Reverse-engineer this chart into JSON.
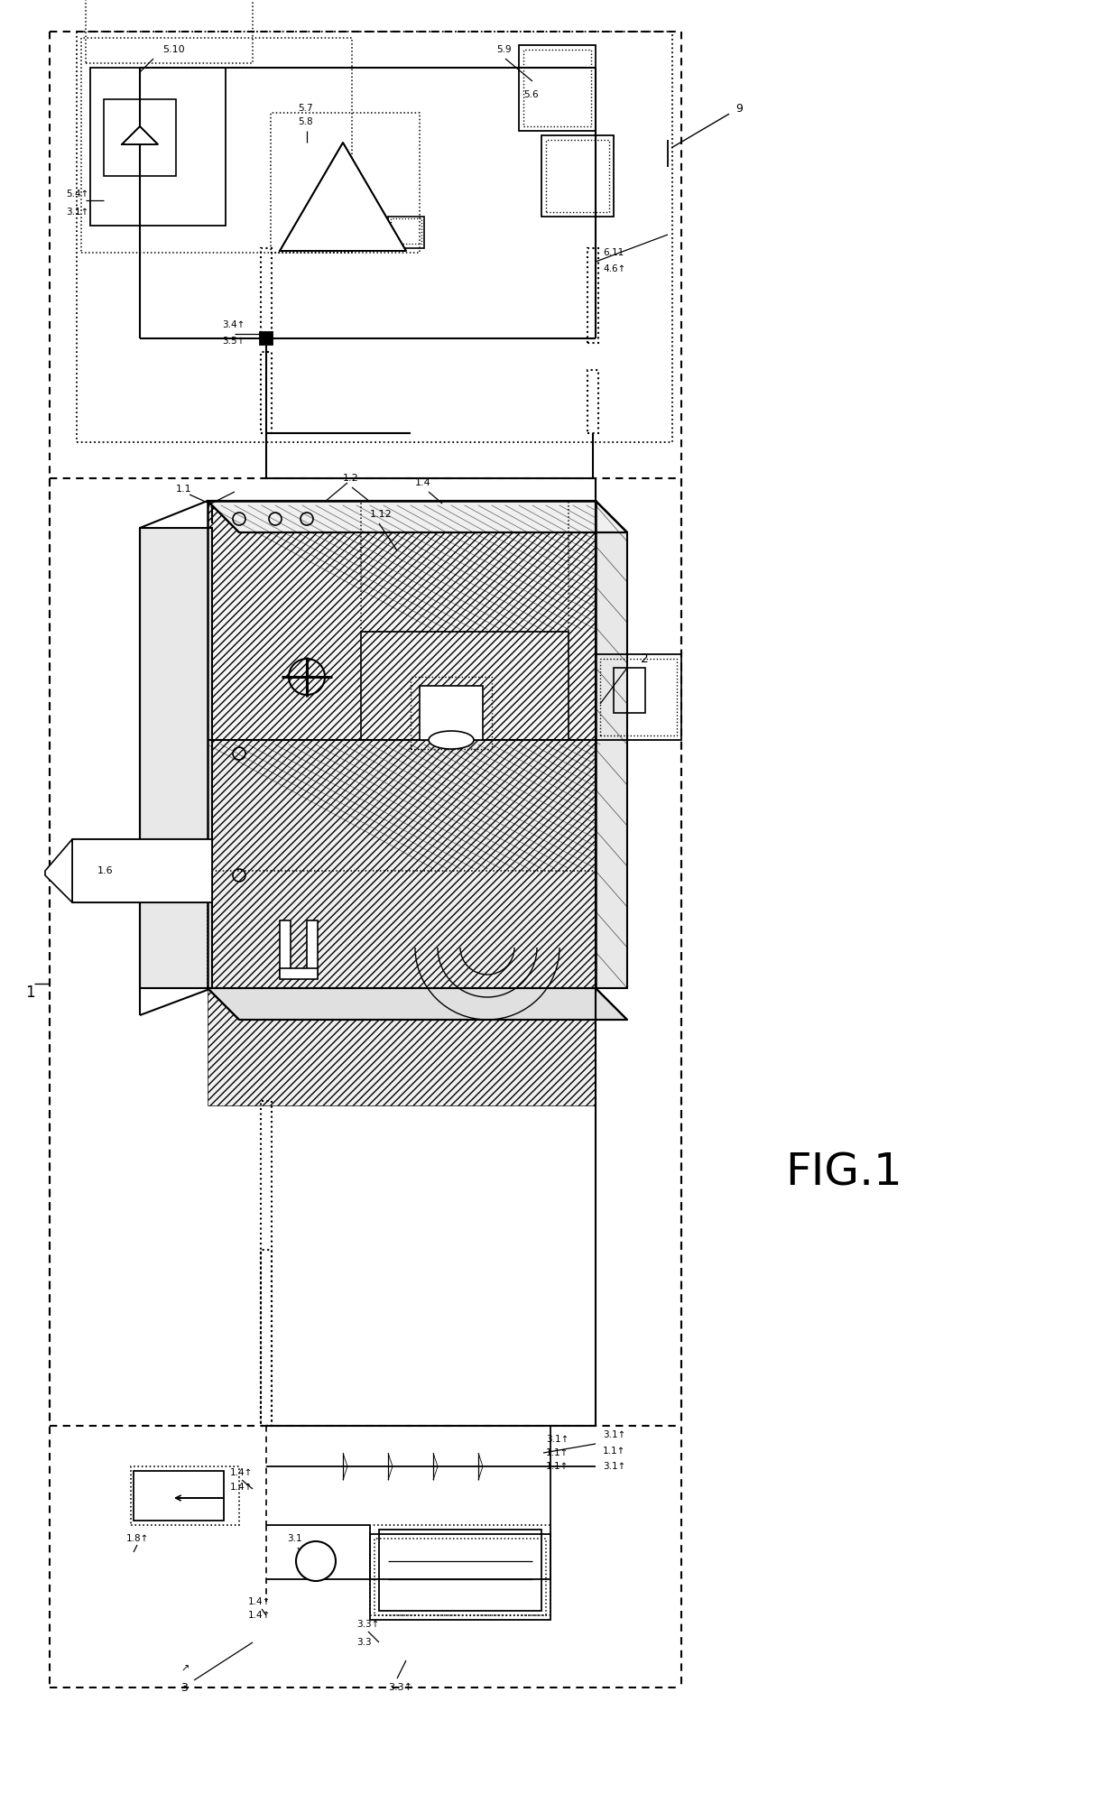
{
  "fig_label": "FIG.1",
  "bg_color": "#ffffff",
  "line_color": "#000000",
  "figsize": [
    12.4,
    19.98
  ],
  "dpi": 100
}
